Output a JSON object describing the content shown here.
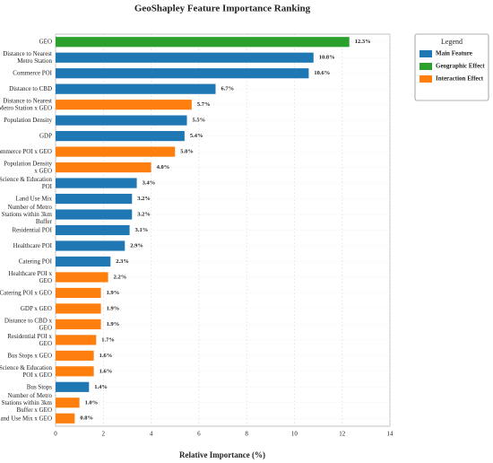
{
  "chart_data": {
    "type": "barh",
    "title": "GeoShapley Feature Importance Ranking",
    "x_label": "Relative Importance (%)",
    "categories": [
      "GEO",
      "Distance to Nearest Metro Station",
      "Commerce POI",
      "Distance to CBD",
      "Distance to Nearest Metro Station x GEO",
      "Population Density",
      "GDP",
      "Commerce POI x GEO",
      "Population Density x GEO",
      "Science & Education POI",
      "Land Use Mix",
      "Number of Metro Stations within 3km Buffer",
      "Residential POI",
      "Healthcare POI",
      "Catering POI",
      "Healthcare POI x GEO",
      "Catering POI x GEO",
      "GDP x GEO",
      "Distance to CBD x GEO",
      "Residential POI x GEO",
      "Bus Stops x GEO",
      "Science & Education POI x GEO",
      "Bus Stops",
      "Number of Metro Stations within 3km Buffer x GEO",
      "Land Use Mix x GEO"
    ],
    "series": [
      {
        "name": "Main Feature",
        "color": "#1f77b4",
        "values": [
          null,
          10.8,
          10.6,
          6.7,
          null,
          5.5,
          5.4,
          null,
          null,
          3.4,
          3.2,
          3.2,
          3.1,
          2.9,
          2.3,
          null,
          null,
          null,
          null,
          null,
          null,
          null,
          1.4,
          null,
          null
        ],
        "value_labels": [
          null,
          "10.8%",
          "10.6%",
          "6.7%",
          null,
          "5.5%",
          "5.4%",
          null,
          null,
          "3.4%",
          "3.2%",
          "3.2%",
          "3.1%",
          "2.9%",
          "2.3%",
          null,
          null,
          null,
          null,
          null,
          null,
          null,
          "1.4%",
          null,
          null
        ]
      },
      {
        "name": "Geographic Effect",
        "color": "#2ca02c",
        "values": [
          12.3,
          null,
          null,
          null,
          null,
          null,
          null,
          null,
          null,
          null,
          null,
          null,
          null,
          null,
          null,
          null,
          null,
          null,
          null,
          null,
          null,
          null,
          null,
          null,
          null
        ],
        "value_labels": [
          "12.3%",
          null,
          null,
          null,
          null,
          null,
          null,
          null,
          null,
          null,
          null,
          null,
          null,
          null,
          null,
          null,
          null,
          null,
          null,
          null,
          null,
          null,
          null,
          null,
          null
        ]
      },
      {
        "name": "Interaction Effect",
        "color": "#ff7f0e",
        "values": [
          null,
          null,
          null,
          null,
          5.7,
          null,
          null,
          5.0,
          4.0,
          null,
          null,
          null,
          null,
          null,
          null,
          2.2,
          1.9,
          1.9,
          1.9,
          1.7,
          1.6,
          1.6,
          null,
          1.0,
          0.8
        ],
        "value_labels": [
          null,
          null,
          null,
          null,
          "5.7%",
          null,
          null,
          "5.0%",
          "4.0%",
          null,
          null,
          null,
          null,
          null,
          null,
          "2.2%",
          "1.9%",
          "1.9%",
          "1.9%",
          "1.7%",
          "1.6%",
          "1.6%",
          null,
          "1.0%",
          "0.8%"
        ]
      }
    ],
    "xlim": [
      0,
      14
    ],
    "xticks": [
      0,
      2,
      4,
      6,
      8,
      10,
      12,
      14
    ],
    "grid": true,
    "legend_title": "Legend",
    "legend_position": "upper right"
  }
}
